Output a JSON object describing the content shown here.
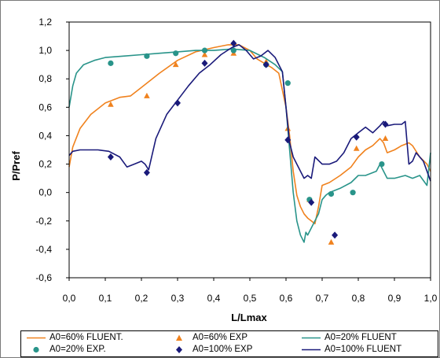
{
  "chart_data": {
    "type": "line",
    "title": "",
    "xlabel": "L/Lmax",
    "ylabel": "P/Pref",
    "xlim": [
      0.0,
      1.0
    ],
    "ylim": [
      -0.6,
      1.2
    ],
    "x_ticks": [
      "0,0",
      "0,1",
      "0,2",
      "0,3",
      "0,4",
      "0,5",
      "0,6",
      "0,7",
      "0,8",
      "0,9",
      "1,0"
    ],
    "y_ticks": [
      "1,2",
      "1,0",
      "0,8",
      "0,6",
      "0,4",
      "0,2",
      "0,0",
      "-0,2",
      "-0,4",
      "-0,6"
    ],
    "grid": "vertical gridlines",
    "legend_position": "bottom",
    "series": [
      {
        "name": "A0=60% FLUENT.",
        "kind": "line",
        "color": "#f0821e",
        "x": [
          0.0,
          0.01,
          0.03,
          0.06,
          0.1,
          0.14,
          0.17,
          0.2,
          0.25,
          0.3,
          0.35,
          0.4,
          0.44,
          0.47,
          0.5,
          0.52,
          0.54,
          0.56,
          0.58,
          0.6,
          0.61,
          0.62,
          0.63,
          0.64,
          0.65,
          0.66,
          0.67,
          0.68,
          0.69,
          0.7,
          0.72,
          0.75,
          0.78,
          0.8,
          0.82,
          0.84,
          0.86,
          0.87,
          0.88,
          0.9,
          0.92,
          0.94,
          0.95,
          0.97,
          0.99,
          1.0
        ],
        "y": [
          0.18,
          0.32,
          0.45,
          0.55,
          0.63,
          0.67,
          0.68,
          0.74,
          0.84,
          0.93,
          0.99,
          1.02,
          1.04,
          1.04,
          1.0,
          0.94,
          0.91,
          0.88,
          0.84,
          0.6,
          0.4,
          0.15,
          -0.02,
          -0.1,
          -0.15,
          -0.18,
          -0.2,
          -0.22,
          -0.1,
          0.05,
          0.07,
          0.12,
          0.18,
          0.25,
          0.3,
          0.33,
          0.38,
          0.35,
          0.28,
          0.3,
          0.33,
          0.35,
          0.33,
          0.25,
          0.2,
          0.15
        ]
      },
      {
        "name": "A0=60% EXP",
        "kind": "scatter",
        "marker": "triangle",
        "color": "#f0821e",
        "x": [
          0.115,
          0.215,
          0.295,
          0.375,
          0.455,
          0.545,
          0.605,
          0.665,
          0.725,
          0.795,
          0.875
        ],
        "y": [
          0.62,
          0.68,
          0.9,
          0.97,
          0.98,
          0.92,
          0.45,
          -0.05,
          -0.35,
          0.31,
          0.38
        ]
      },
      {
        "name": "A0=20% FLUENT",
        "kind": "line",
        "color": "#29948a",
        "x": [
          0.0,
          0.01,
          0.02,
          0.04,
          0.07,
          0.1,
          0.15,
          0.2,
          0.25,
          0.3,
          0.35,
          0.4,
          0.45,
          0.5,
          0.54,
          0.57,
          0.59,
          0.6,
          0.61,
          0.62,
          0.63,
          0.64,
          0.65,
          0.655,
          0.66,
          0.67,
          0.68,
          0.69,
          0.7,
          0.71,
          0.72,
          0.75,
          0.78,
          0.8,
          0.82,
          0.85,
          0.86,
          0.87,
          0.88,
          0.9,
          0.93,
          0.95,
          0.97,
          0.99,
          1.0
        ],
        "y": [
          0.6,
          0.75,
          0.84,
          0.9,
          0.93,
          0.95,
          0.96,
          0.97,
          0.98,
          0.99,
          1.0,
          1.0,
          1.01,
          1.0,
          0.95,
          0.9,
          0.85,
          0.6,
          0.3,
          0.0,
          -0.2,
          -0.3,
          -0.35,
          -0.28,
          -0.3,
          -0.25,
          -0.2,
          -0.15,
          -0.05,
          -0.02,
          0.0,
          0.03,
          0.07,
          0.12,
          0.12,
          0.15,
          0.2,
          0.15,
          0.1,
          0.1,
          0.12,
          0.1,
          0.12,
          0.05,
          0.28
        ]
      },
      {
        "name": "A0=20% EXP.",
        "kind": "scatter",
        "marker": "circle",
        "color": "#29948a",
        "x": [
          0.115,
          0.215,
          0.295,
          0.375,
          0.455,
          0.545,
          0.605,
          0.665,
          0.725,
          0.785,
          0.865
        ],
        "y": [
          0.91,
          0.96,
          0.98,
          1.0,
          1.0,
          0.9,
          0.77,
          -0.05,
          -0.01,
          0.0,
          0.2
        ]
      },
      {
        "name": "A0=100% EXP",
        "kind": "scatter",
        "marker": "diamond",
        "color": "#1a1a7a",
        "x": [
          0.115,
          0.215,
          0.3,
          0.375,
          0.455,
          0.545,
          0.605,
          0.67,
          0.735,
          0.795,
          0.875
        ],
        "y": [
          0.25,
          0.14,
          0.63,
          0.91,
          1.05,
          0.9,
          0.37,
          -0.07,
          -0.3,
          0.39,
          0.48
        ]
      },
      {
        "name": "A0=100% FLUENT",
        "kind": "line",
        "color": "#1a1a7a",
        "x": [
          0.0,
          0.01,
          0.03,
          0.05,
          0.08,
          0.11,
          0.14,
          0.16,
          0.18,
          0.2,
          0.21,
          0.22,
          0.24,
          0.27,
          0.3,
          0.33,
          0.36,
          0.39,
          0.42,
          0.45,
          0.47,
          0.49,
          0.51,
          0.53,
          0.55,
          0.57,
          0.59,
          0.6,
          0.61,
          0.62,
          0.63,
          0.64,
          0.65,
          0.66,
          0.67,
          0.68,
          0.7,
          0.72,
          0.74,
          0.76,
          0.78,
          0.8,
          0.82,
          0.84,
          0.86,
          0.87,
          0.88,
          0.9,
          0.92,
          0.93,
          0.94,
          0.95,
          0.96,
          0.98,
          1.0
        ],
        "y": [
          0.26,
          0.29,
          0.3,
          0.3,
          0.3,
          0.29,
          0.25,
          0.18,
          0.2,
          0.22,
          0.2,
          0.16,
          0.38,
          0.55,
          0.65,
          0.75,
          0.84,
          0.9,
          0.97,
          1.02,
          1.04,
          1.0,
          0.94,
          0.96,
          1.0,
          0.95,
          0.85,
          0.6,
          0.35,
          0.25,
          0.2,
          0.15,
          0.1,
          0.12,
          0.1,
          0.25,
          0.2,
          0.2,
          0.22,
          0.28,
          0.38,
          0.42,
          0.46,
          0.42,
          0.47,
          0.5,
          0.47,
          0.48,
          0.48,
          0.5,
          0.2,
          0.22,
          0.28,
          0.22,
          0.08
        ]
      }
    ]
  }
}
